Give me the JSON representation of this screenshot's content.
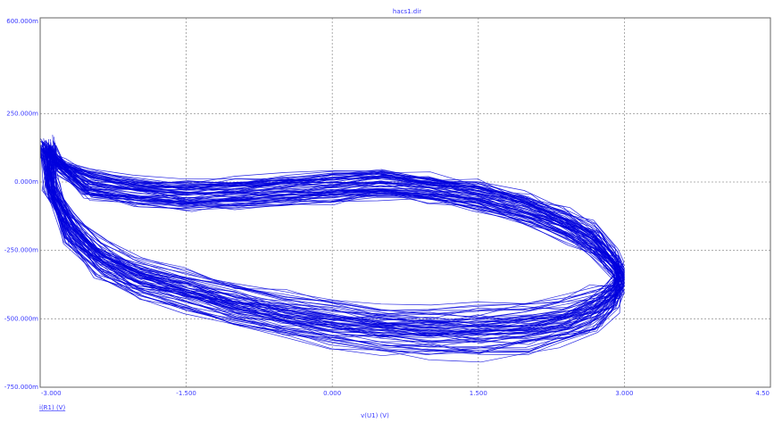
{
  "chart_data": {
    "type": "line",
    "title": "hacs1.dir",
    "xlabel": "v(U1) (V)",
    "ylabel": "i(R1) (V)",
    "xlim": [
      -3.0,
      4.5
    ],
    "ylim": [
      -750,
      600
    ],
    "x_ticks": [
      "-3.000",
      "-1.500",
      "0.000",
      "1.500",
      "3.000",
      "4.50"
    ],
    "y_ticks": [
      "600.000m",
      "250.000m",
      "0.000m",
      "-250.000m",
      "-500.000m",
      "-750.000m"
    ],
    "grid": true,
    "series_color": "#0000dd",
    "series": [
      {
        "x": [
          -2.95,
          -2.8,
          -2.5,
          -2.0,
          -1.5,
          -1.0,
          -0.5,
          0.0,
          0.5,
          1.0,
          1.5,
          2.0,
          2.4,
          2.7,
          2.9,
          3.0,
          2.9,
          2.7,
          2.4,
          2.0,
          1.5,
          1.0,
          0.5,
          0.0,
          -0.5,
          -1.0,
          -1.5,
          -2.0,
          -2.4,
          -2.7,
          -2.9,
          -2.95
        ],
        "y": [
          130,
          60,
          -10,
          -40,
          -50,
          -45,
          -30,
          -20,
          -10,
          -25,
          -50,
          -100,
          -160,
          -220,
          -300,
          -360,
          -430,
          -480,
          -520,
          -550,
          -560,
          -560,
          -550,
          -530,
          -500,
          -460,
          -410,
          -360,
          -290,
          -180,
          -30,
          130
        ]
      }
    ]
  }
}
